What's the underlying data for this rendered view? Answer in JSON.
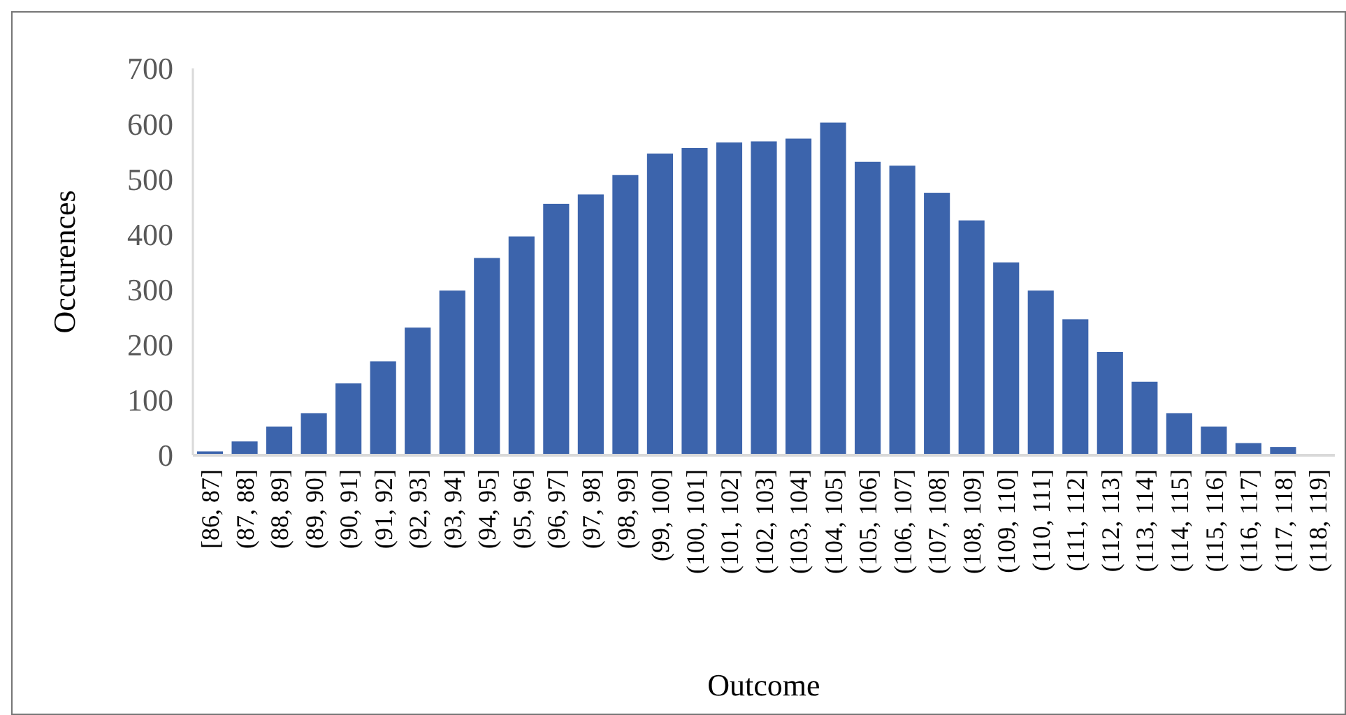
{
  "chart_data": {
    "type": "bar",
    "xlabel": "Outcome",
    "ylabel": "Occurences",
    "categories": [
      "[86, 87]",
      "(87, 88]",
      "(88, 89]",
      "(89, 90]",
      "(90, 91]",
      "(91, 92]",
      "(92, 93]",
      "(93, 94]",
      "(94, 95]",
      "(95, 96]",
      "(96, 97]",
      "(97, 98]",
      "(98, 99]",
      "(99, 100]",
      "(100, 101]",
      "(101, 102]",
      "(102, 103]",
      "(103, 104]",
      "(104, 105]",
      "(105, 106]",
      "(106, 107]",
      "(107, 108]",
      "(108, 109]",
      "(109, 110]",
      "(110, 111]",
      "(111, 112]",
      "(112, 113]",
      "(113, 114]",
      "(114, 115]",
      "(115, 116]",
      "(116, 117]",
      "(117, 118]",
      "(118, 119]"
    ],
    "values": [
      7,
      25,
      52,
      76,
      130,
      170,
      231,
      298,
      357,
      396,
      455,
      472,
      507,
      546,
      556,
      566,
      568,
      573,
      602,
      531,
      524,
      475,
      425,
      349,
      298,
      246,
      187,
      133,
      76,
      52,
      22,
      15,
      0
    ],
    "color": "#3c64ac",
    "ylim": [
      0,
      700
    ],
    "yticks": [
      0,
      100,
      200,
      300,
      400,
      500,
      600,
      700
    ],
    "grid": false
  }
}
